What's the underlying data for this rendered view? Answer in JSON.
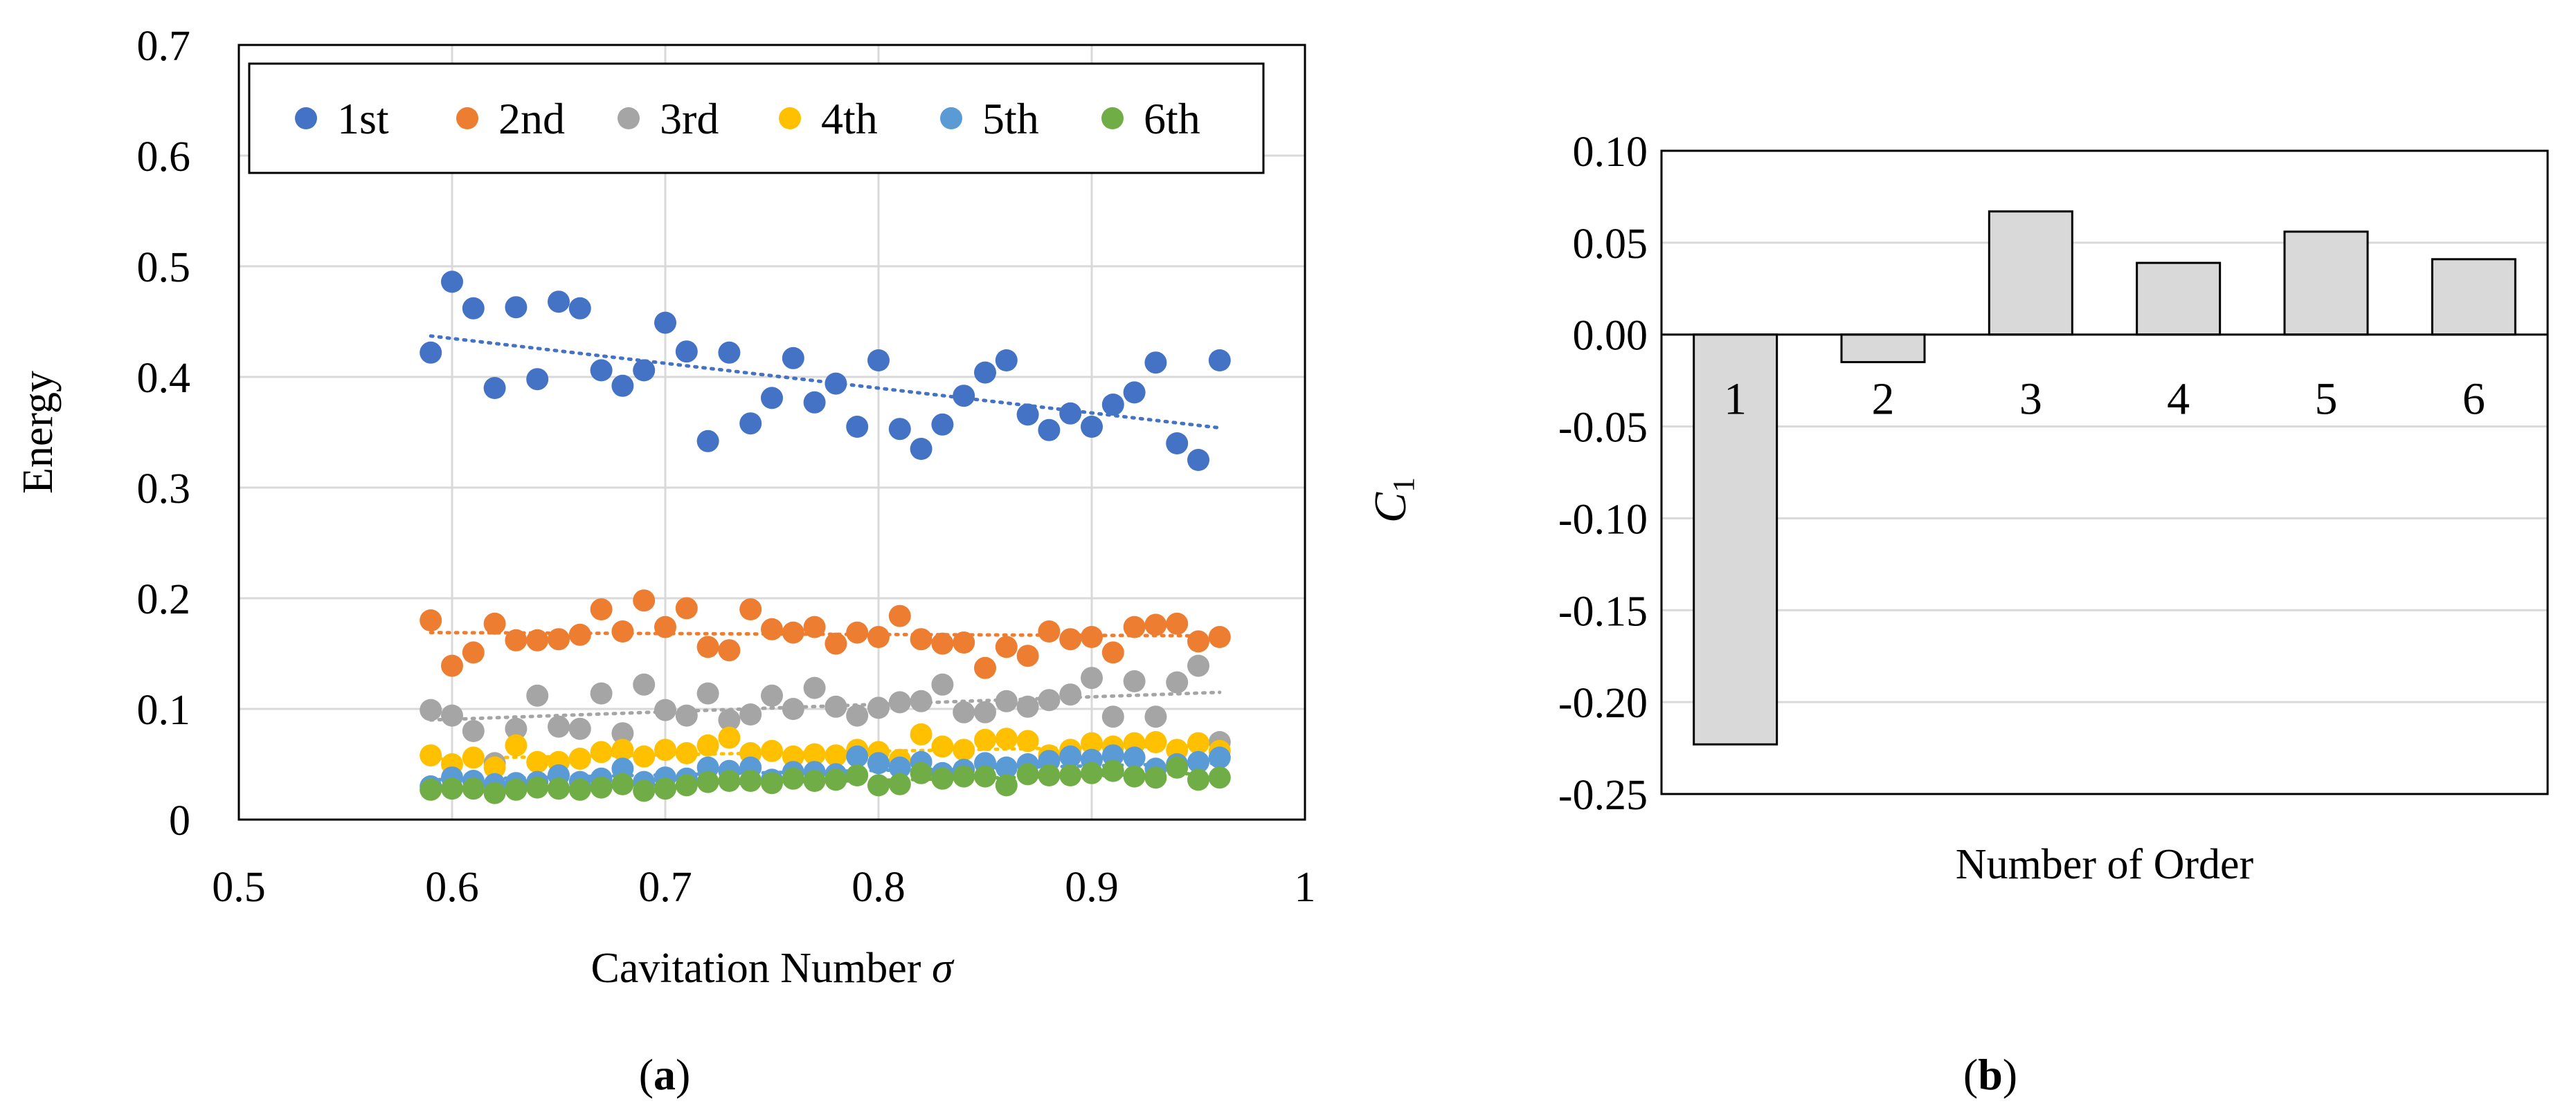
{
  "panels": {
    "a": {
      "caption": "(a)",
      "caption_letter": "a"
    },
    "b": {
      "caption": "(b)",
      "caption_letter": "b"
    }
  },
  "chart_data": [
    {
      "id": "a",
      "type": "scatter",
      "title": "",
      "xlabel": "Cavitation Number σ",
      "xlabel_main": "Cavitation Number ",
      "xlabel_symbol": "σ",
      "ylabel": "Energy",
      "xlim": [
        0.5,
        1
      ],
      "ylim": [
        0,
        0.7
      ],
      "xticks": [
        0.5,
        0.6,
        0.7,
        0.8,
        0.9,
        1
      ],
      "xtick_labels": [
        "0.5",
        "0.6",
        "0.7",
        "0.8",
        "0.9",
        "1"
      ],
      "yticks": [
        0,
        0.1,
        0.2,
        0.3,
        0.4,
        0.5,
        0.6,
        0.7
      ],
      "ytick_labels": [
        "0",
        "0.1",
        "0.2",
        "0.3",
        "0.4",
        "0.5",
        "0.6",
        "0.7"
      ],
      "grid": true,
      "legend": "top-left",
      "x": [
        0.59,
        0.6,
        0.61,
        0.62,
        0.63,
        0.64,
        0.65,
        0.66,
        0.67,
        0.68,
        0.69,
        0.7,
        0.71,
        0.72,
        0.73,
        0.74,
        0.75,
        0.76,
        0.77,
        0.78,
        0.79,
        0.8,
        0.81,
        0.82,
        0.83,
        0.84,
        0.85,
        0.86,
        0.87,
        0.88,
        0.89,
        0.9,
        0.91,
        0.92,
        0.93,
        0.94,
        0.95,
        0.96
      ],
      "series": [
        {
          "name": "1st",
          "color": "#4472C4",
          "values": [
            0.422,
            0.486,
            0.462,
            0.39,
            0.463,
            0.398,
            0.468,
            0.462,
            0.406,
            0.392,
            0.406,
            0.449,
            0.423,
            0.342,
            0.422,
            0.358,
            0.381,
            0.417,
            0.377,
            0.394,
            0.355,
            0.415,
            0.353,
            0.335,
            0.357,
            0.383,
            0.404,
            0.415,
            0.366,
            0.352,
            0.367,
            0.355,
            0.375,
            0.386,
            0.413,
            0.34,
            0.325,
            0.415
          ],
          "trend": [
            0.437,
            0.354
          ]
        },
        {
          "name": "2nd",
          "color": "#ED7D31",
          "values": [
            0.18,
            0.139,
            0.151,
            0.177,
            0.162,
            0.162,
            0.163,
            0.167,
            0.19,
            0.17,
            0.198,
            0.174,
            0.191,
            0.156,
            0.153,
            0.19,
            0.172,
            0.169,
            0.174,
            0.159,
            0.169,
            0.165,
            0.184,
            0.163,
            0.159,
            0.16,
            0.137,
            0.156,
            0.148,
            0.17,
            0.163,
            0.165,
            0.151,
            0.174,
            0.176,
            0.177,
            0.161,
            0.165
          ],
          "trend": [
            0.169,
            0.166
          ]
        },
        {
          "name": "3rd",
          "color": "#A5A5A5",
          "values": [
            0.099,
            0.094,
            0.08,
            0.051,
            0.082,
            0.112,
            0.084,
            0.082,
            0.114,
            0.078,
            0.122,
            0.099,
            0.094,
            0.114,
            0.09,
            0.095,
            0.112,
            0.1,
            0.119,
            0.102,
            0.094,
            0.101,
            0.106,
            0.107,
            0.122,
            0.097,
            0.097,
            0.107,
            0.102,
            0.108,
            0.113,
            0.128,
            0.093,
            0.125,
            0.093,
            0.124,
            0.139,
            0.07
          ],
          "trend": [
            0.09,
            0.115
          ]
        },
        {
          "name": "4th",
          "color": "#FFC000",
          "values": [
            0.058,
            0.05,
            0.056,
            0.047,
            0.067,
            0.052,
            0.052,
            0.055,
            0.061,
            0.063,
            0.057,
            0.063,
            0.06,
            0.067,
            0.074,
            0.06,
            0.062,
            0.057,
            0.059,
            0.058,
            0.063,
            0.061,
            0.054,
            0.077,
            0.066,
            0.063,
            0.072,
            0.073,
            0.071,
            0.058,
            0.063,
            0.069,
            0.066,
            0.069,
            0.07,
            0.063,
            0.069,
            0.062
          ],
          "trend": [
            0.055,
            0.067
          ]
        },
        {
          "name": "5th",
          "color": "#5B9BD5",
          "values": [
            0.03,
            0.038,
            0.035,
            0.032,
            0.033,
            0.034,
            0.04,
            0.034,
            0.037,
            0.046,
            0.034,
            0.038,
            0.037,
            0.047,
            0.044,
            0.047,
            0.036,
            0.043,
            0.043,
            0.041,
            0.057,
            0.051,
            0.047,
            0.052,
            0.042,
            0.045,
            0.051,
            0.047,
            0.05,
            0.053,
            0.057,
            0.054,
            0.058,
            0.056,
            0.046,
            0.05,
            0.052,
            0.056
          ],
          "trend": [
            0.036,
            0.051
          ]
        },
        {
          "name": "6th",
          "color": "#70AD47",
          "values": [
            0.027,
            0.028,
            0.028,
            0.024,
            0.027,
            0.029,
            0.028,
            0.027,
            0.029,
            0.032,
            0.026,
            0.028,
            0.031,
            0.034,
            0.035,
            0.035,
            0.033,
            0.037,
            0.035,
            0.036,
            0.04,
            0.031,
            0.032,
            0.042,
            0.037,
            0.039,
            0.039,
            0.031,
            0.041,
            0.04,
            0.04,
            0.042,
            0.044,
            0.039,
            0.038,
            0.047,
            0.036,
            0.038
          ],
          "trend": [
            0.027,
            0.042
          ]
        }
      ]
    },
    {
      "id": "b",
      "type": "bar",
      "title": "",
      "xlabel": "Number of Order",
      "ylabel": "C1",
      "ylabel_main": "C",
      "ylabel_sub": "1",
      "categories": [
        "1",
        "2",
        "3",
        "4",
        "5",
        "6"
      ],
      "values": [
        -0.223,
        -0.015,
        0.067,
        0.039,
        0.056,
        0.041
      ],
      "ylim": [
        -0.25,
        0.1
      ],
      "yticks": [
        -0.25,
        -0.2,
        -0.15,
        -0.1,
        -0.05,
        0,
        0.05,
        0.1
      ],
      "ytick_labels": [
        "-0.25",
        "-0.20",
        "-0.15",
        "-0.10",
        "-0.05",
        "0.00",
        "0.05",
        "0.10"
      ],
      "grid": true,
      "bar_color": "#D9D9D9"
    }
  ]
}
